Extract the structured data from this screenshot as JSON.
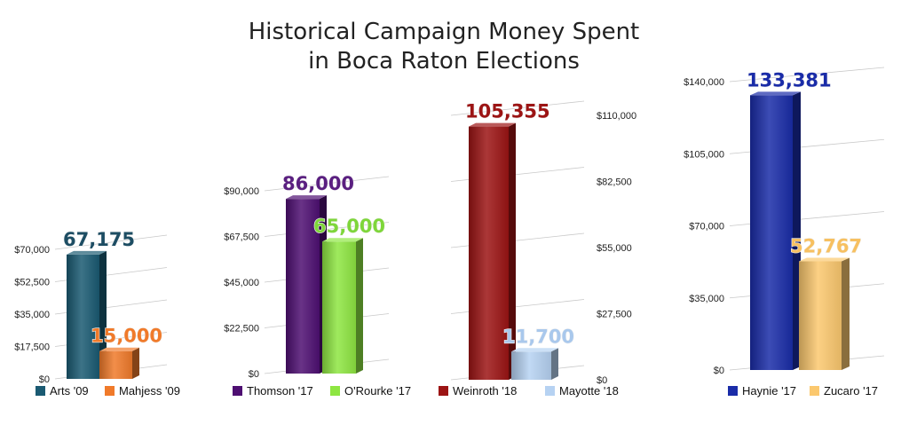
{
  "title_lines": [
    "Historical Campaign Money Spent",
    "in Boca Raton Elections"
  ],
  "chart_data": [
    {
      "type": "bar",
      "categories": [
        "Arts '09",
        "Mahjess '09"
      ],
      "values": [
        67175,
        15000
      ],
      "data_labels": [
        "67,175",
        "15,000"
      ],
      "colors": [
        "#1a5a72",
        "#f07a2a"
      ],
      "label_colors": [
        "#1d4d63",
        "#f07a2a"
      ],
      "ylim": [
        0,
        70000
      ],
      "ticks": [
        "$0",
        "$17,500",
        "$35,000",
        "$52,500",
        "$70,000"
      ],
      "axis_side": "left",
      "legend": [
        {
          "label": "Arts '09"
        },
        {
          "label": "Mahjess '09"
        }
      ]
    },
    {
      "type": "bar",
      "categories": [
        "Thomson '17",
        "O'Rourke '17"
      ],
      "values": [
        86000,
        65000
      ],
      "data_labels": [
        "86,000",
        "65,000"
      ],
      "colors": [
        "#4e0f72",
        "#8ee642"
      ],
      "label_colors": [
        "#5a1f80",
        "#7ed63a"
      ],
      "ylim": [
        0,
        90000
      ],
      "ticks": [
        "$0",
        "$22,500",
        "$45,000",
        "$67,500",
        "$90,000"
      ],
      "axis_side": "left",
      "legend": [
        {
          "label": "Thomson '17"
        },
        {
          "label": "O'Rourke '17"
        }
      ]
    },
    {
      "type": "bar",
      "categories": [
        "Weinroth '18",
        "Mayotte '18"
      ],
      "values": [
        105355,
        11700
      ],
      "data_labels": [
        "105,355",
        "11,700"
      ],
      "colors": [
        "#9c1414",
        "#b6d2f2"
      ],
      "label_colors": [
        "#9c1414",
        "#a9c8ec"
      ],
      "ylim": [
        0,
        110000
      ],
      "ticks": [
        "$0",
        "$27,500",
        "$55,000",
        "$82,500",
        "$110,000"
      ],
      "axis_side": "right",
      "legend": [
        {
          "label": "Weinroth '18"
        },
        {
          "label": "Mayotte '18"
        }
      ]
    },
    {
      "type": "bar",
      "categories": [
        "Haynie '17",
        "Zucaro '17"
      ],
      "values": [
        133381,
        52767
      ],
      "data_labels": [
        "133,381",
        "52,767"
      ],
      "colors": [
        "#1a2ca8",
        "#fbc86e"
      ],
      "label_colors": [
        "#1a2ca8",
        "#f7c060"
      ],
      "ylim": [
        0,
        140000
      ],
      "ticks": [
        "$0",
        "$35,000",
        "$70,000",
        "$105,000",
        "$140,000"
      ],
      "axis_side": "left",
      "legend": [
        {
          "label": "Haynie '17"
        },
        {
          "label": "Zucaro '17"
        }
      ]
    }
  ]
}
